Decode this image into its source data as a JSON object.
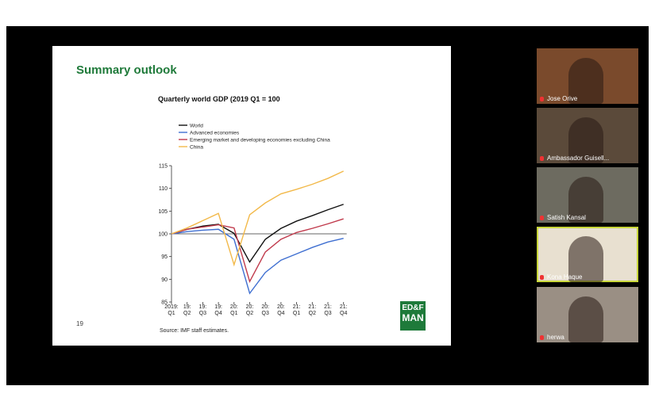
{
  "slide": {
    "title": "Summary outlook",
    "page_number": "19",
    "source": "Source: IMF staff estimates.",
    "logo": [
      "ED&F",
      "MAN"
    ]
  },
  "chart_data": {
    "type": "line",
    "title": "Quarterly world GDP (2019 Q1 = 100",
    "categories": [
      "2019:\nQ1",
      "19:\nQ2",
      "19:\nQ3",
      "19:\nQ4",
      "20:\nQ1",
      "20:\nQ2",
      "20:\nQ3",
      "20:\nQ4",
      "21:\nQ1",
      "21:\nQ2",
      "21:\nQ3",
      "21:\nQ4"
    ],
    "series": [
      {
        "name": "World",
        "color": "#111111",
        "values": [
          100,
          101,
          101.7,
          102.1,
          100.1,
          93.8,
          98.8,
          101.2,
          102.8,
          104.0,
          105.3,
          106.5
        ]
      },
      {
        "name": "Advanced economies",
        "color": "#3f6fd1",
        "values": [
          100,
          100.5,
          100.8,
          101,
          98.8,
          86.9,
          91.5,
          94.2,
          95.6,
          97,
          98.2,
          99.0
        ]
      },
      {
        "name": "Emerging market and developing economies excluding China",
        "color": "#c0394b",
        "values": [
          100,
          101,
          101.5,
          102,
          101.3,
          89.5,
          96,
          98.8,
          100.3,
          101.2,
          102.2,
          103.3
        ]
      },
      {
        "name": "China",
        "color": "#f2b94a",
        "values": [
          100,
          101.3,
          102.9,
          104.5,
          93.2,
          104.2,
          106.8,
          108.8,
          109.8,
          110.9,
          112.2,
          113.8
        ]
      }
    ],
    "ylim": [
      85,
      115
    ],
    "yticks": [
      85,
      90,
      95,
      100,
      105,
      110,
      115
    ],
    "hline": 100,
    "legend": "top-left"
  },
  "participants": [
    {
      "name": "Jose Orive",
      "active": false
    },
    {
      "name": "Ambassador Guisell...",
      "active": false
    },
    {
      "name": "Satish Kansal",
      "active": false
    },
    {
      "name": "Kona Haque",
      "active": true
    },
    {
      "name": "herwa",
      "active": false
    }
  ]
}
